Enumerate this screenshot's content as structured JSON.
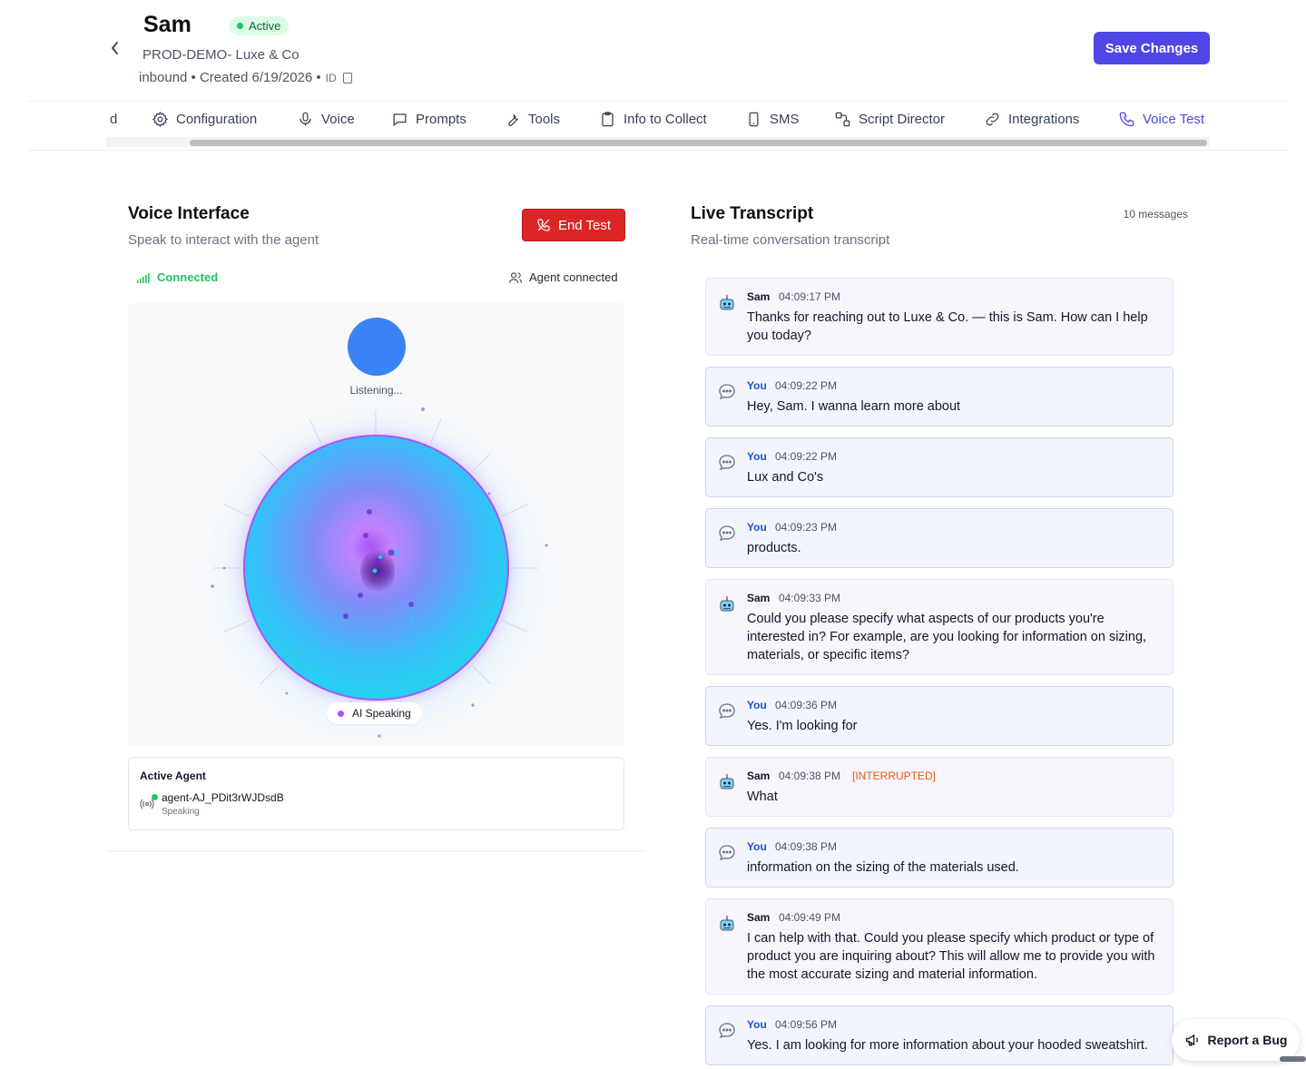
{
  "header": {
    "back_label": "‹",
    "name": "Sam",
    "status": "Active",
    "subtitle": "PROD-DEMO- Luxe & Co",
    "meta": "inbound • Created 6/19/2026 •",
    "id_label": "ID",
    "save_label": "Save Changes",
    "save_color": "#4f46e5"
  },
  "tabs": [
    {
      "label": "d",
      "icon": "none"
    },
    {
      "label": "Configuration",
      "icon": "gear-icon"
    },
    {
      "label": "Voice",
      "icon": "microphone-icon"
    },
    {
      "label": "Prompts",
      "icon": "chat-icon"
    },
    {
      "label": "Tools",
      "icon": "wrench-icon"
    },
    {
      "label": "Info to Collect",
      "icon": "clipboard-icon"
    },
    {
      "label": "SMS",
      "icon": "phone-device-icon"
    },
    {
      "label": "Script Director",
      "icon": "workflow-icon"
    },
    {
      "label": "Integrations",
      "icon": "link-icon"
    },
    {
      "label": "Voice Test",
      "icon": "phone-icon",
      "active": true
    }
  ],
  "voice_interface": {
    "title": "Voice Interface",
    "subtitle": "Speak to interact with the agent",
    "end_label": "End Test",
    "end_color": "#dc2626",
    "connection": "Connected",
    "agent_connection": "Agent connected",
    "listening": "Listening...",
    "speaking": "AI Speaking"
  },
  "active_agent": {
    "title": "Active Agent",
    "agent_id": "agent-AJ_PDit3rWJDsdB",
    "state": "Speaking"
  },
  "transcript": {
    "title": "Live Transcript",
    "subtitle": "Real-time conversation transcript",
    "count": "10 messages",
    "messages": [
      {
        "role": "agent",
        "who": "Sam",
        "time": "04:09:17 PM",
        "flag": "",
        "text": "Thanks for reaching out to Luxe & Co. — this is Sam. How can I help you today?"
      },
      {
        "role": "user",
        "who": "You",
        "time": "04:09:22 PM",
        "flag": "",
        "text": "Hey, Sam. I wanna learn more about"
      },
      {
        "role": "user",
        "who": "You",
        "time": "04:09:22 PM",
        "flag": "",
        "text": "Lux and Co's"
      },
      {
        "role": "user",
        "who": "You",
        "time": "04:09:23 PM",
        "flag": "",
        "text": "products."
      },
      {
        "role": "agent",
        "who": "Sam",
        "time": "04:09:33 PM",
        "flag": "",
        "text": "Could you please specify what aspects of our products you're interested in? For example, are you looking for information on sizing, materials, or specific items?"
      },
      {
        "role": "user",
        "who": "You",
        "time": "04:09:36 PM",
        "flag": "",
        "text": "Yes. I'm looking for"
      },
      {
        "role": "agent",
        "who": "Sam",
        "time": "04:09:38 PM",
        "flag": "[INTERRUPTED]",
        "text": "What"
      },
      {
        "role": "user",
        "who": "You",
        "time": "04:09:38 PM",
        "flag": "",
        "text": "information on the sizing of the materials used."
      },
      {
        "role": "agent",
        "who": "Sam",
        "time": "04:09:49 PM",
        "flag": "",
        "text": "I can help with that. Could you please specify which product or type of product you are inquiring about? This will allow me to provide you with the most accurate sizing and material information."
      },
      {
        "role": "user",
        "who": "You",
        "time": "04:09:56 PM",
        "flag": "",
        "text": "Yes. I am looking for more information about your hooded sweatshirt."
      }
    ]
  },
  "report_bug": "Report a Bug"
}
